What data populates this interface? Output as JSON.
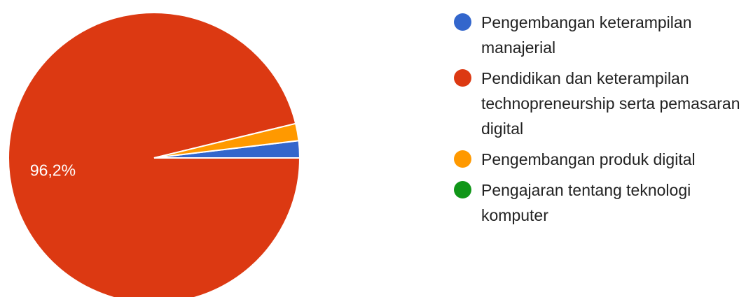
{
  "chart_data": {
    "type": "pie",
    "title": "",
    "categories": [
      "Pengembangan keterampilan manajerial",
      "Pendidikan dan keterampilan technopreneurship serta pemasaran digital",
      "Pengembangan produk digital",
      "Pengajaran tentang teknologi komputer"
    ],
    "values": [
      1.9,
      96.2,
      1.9,
      0
    ],
    "colors": [
      "#3366cc",
      "#dc3912",
      "#ff9900",
      "#109618"
    ],
    "slice_labels": [
      "",
      "96,2%",
      "",
      ""
    ],
    "legend": "right"
  }
}
